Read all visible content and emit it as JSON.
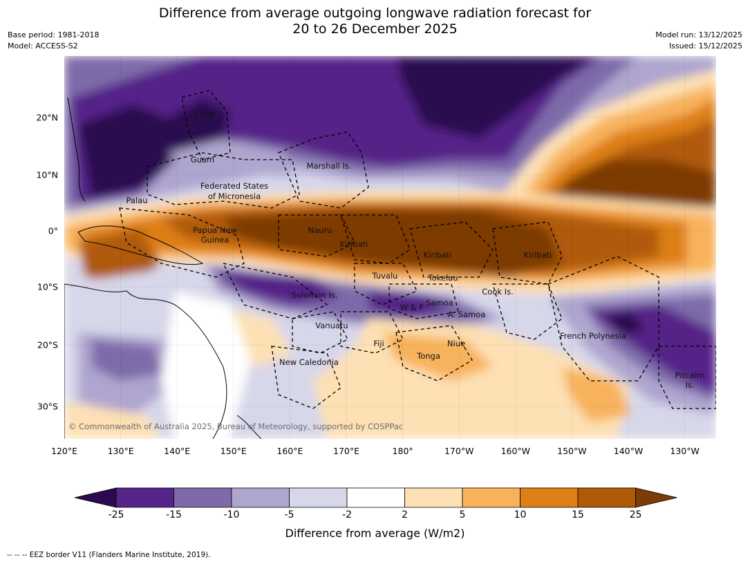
{
  "header": {
    "title_line1": "Difference from average outgoing longwave radiation forecast for",
    "title_line2": "20 to 26 December 2025",
    "base_period": "Base period: 1981-2018",
    "model": "Model: ACCESS-S2",
    "model_run": "Model run: 13/12/2025",
    "issued": "Issued: 15/12/2025"
  },
  "map": {
    "longitude_ticks": [
      "120°E",
      "130°E",
      "140°E",
      "150°E",
      "160°E",
      "170°E",
      "180°",
      "170°W",
      "160°W",
      "150°W",
      "140°W",
      "130°W"
    ],
    "latitude_ticks": [
      "20°N",
      "10°N",
      "0°",
      "10°S",
      "20°S",
      "30°S"
    ],
    "place_labels": {
      "cnmi": "CNMI",
      "guam": "Guam",
      "marshall": "Marshall Is.",
      "fsm_line1": "Federated States",
      "fsm_line2": "of Micronesia",
      "palau": "Palau",
      "png_line1": "Papua New",
      "png_line2": "Guinea",
      "nauru": "Nauru",
      "kiribati_west": "Kiribati",
      "kiribati_central": "Kiribati",
      "kiribati_east": "Kiribati",
      "tuvalu": "Tuvalu",
      "tokelau": "Tokelau",
      "cook": "Cook Is.",
      "solomon": "Solomon Is.",
      "samoa": "Samoa",
      "wf": "W & F",
      "asamoa": "A. Samoa",
      "vanuatu": "Vanuatu",
      "fiji": "Fiji",
      "niue": "Niue",
      "tonga": "Tonga",
      "frpoly": "French Polynesia",
      "pitcairn_line1": "Pitcairn",
      "pitcairn_line2": "Is.",
      "newcal": "New Caledonia"
    },
    "copyright": "© Commonwealth of Australia 2025, Bureau of Meteorology, supported by COSPPac"
  },
  "colorbar": {
    "title": "Difference from average (W/m2)",
    "tick_labels": [
      "-25",
      "-15",
      "-10",
      "-5",
      "-2",
      "2",
      "5",
      "10",
      "15",
      "25"
    ],
    "colors": {
      "lt_m25": "#2b0a4f",
      "m25_m15": "#542488",
      "m15_m10": "#7e6aa9",
      "m10_m5": "#afa6cf",
      "m5_m2": "#d7d7ea",
      "m2_p2": "#ffffff",
      "p2_p5": "#fde0b4",
      "p5_p10": "#f8b25b",
      "p10_p15": "#dd7f16",
      "p15_p25": "#b05a08",
      "gt_p25": "#7d3b06"
    }
  },
  "footer": {
    "legend": "--  --  -- EEZ border V11 (Flanders Marine Institute, 2019)."
  }
}
